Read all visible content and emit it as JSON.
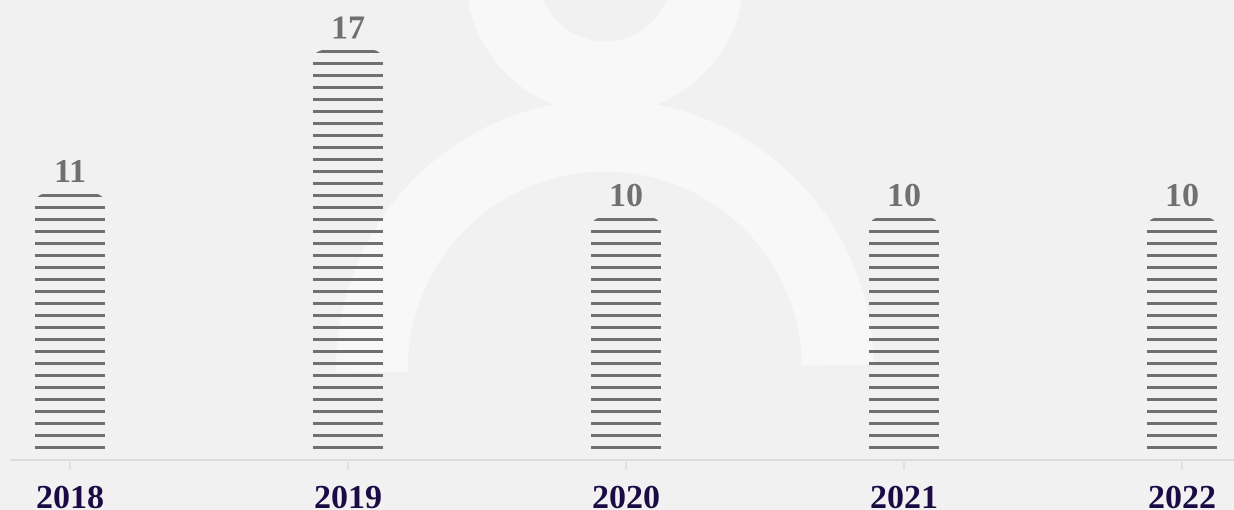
{
  "chart_data": {
    "type": "bar",
    "categories": [
      "2018",
      "2019",
      "2020",
      "2021",
      "2022"
    ],
    "values": [
      11,
      17,
      10,
      10,
      10
    ],
    "color": "#707070"
  }
}
